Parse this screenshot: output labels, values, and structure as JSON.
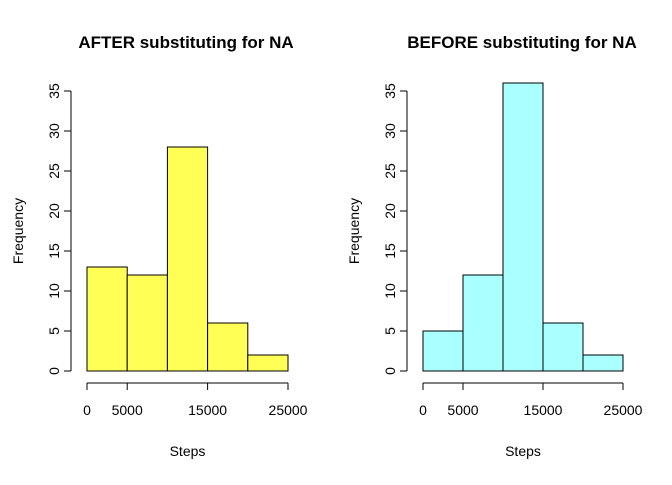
{
  "chart_data": [
    {
      "type": "bar",
      "title": "AFTER substituting for NA",
      "xlabel": "Steps",
      "ylabel": "Frequency",
      "color": "#ffff55",
      "bins": [
        [
          0,
          5000
        ],
        [
          5000,
          10000
        ],
        [
          10000,
          15000
        ],
        [
          15000,
          20000
        ],
        [
          20000,
          25000
        ]
      ],
      "values": [
        13,
        12,
        28,
        6,
        2
      ],
      "xlim": [
        0,
        25000
      ],
      "ylim": [
        0,
        35
      ],
      "x_ticks": [
        0,
        5000,
        15000,
        25000
      ],
      "x_tick_labels": [
        "0",
        "5000",
        "15000",
        "25000"
      ],
      "y_ticks": [
        0,
        5,
        10,
        15,
        20,
        25,
        30,
        35
      ],
      "y_tick_labels": [
        "0",
        "5",
        "10",
        "15",
        "20",
        "25",
        "30",
        "35"
      ],
      "grid": false
    },
    {
      "type": "bar",
      "title": "BEFORE substituting for NA",
      "xlabel": "Steps",
      "ylabel": "Frequency",
      "color": "#aaffff",
      "bins": [
        [
          0,
          5000
        ],
        [
          5000,
          10000
        ],
        [
          10000,
          15000
        ],
        [
          15000,
          20000
        ],
        [
          20000,
          25000
        ]
      ],
      "values": [
        5,
        12,
        36,
        6,
        2
      ],
      "xlim": [
        0,
        25000
      ],
      "ylim": [
        0,
        35
      ],
      "x_ticks": [
        0,
        5000,
        15000,
        25000
      ],
      "x_tick_labels": [
        "0",
        "5000",
        "15000",
        "25000"
      ],
      "y_ticks": [
        0,
        5,
        10,
        15,
        20,
        25,
        30,
        35
      ],
      "y_tick_labels": [
        "0",
        "5",
        "10",
        "15",
        "20",
        "25",
        "30",
        "35"
      ],
      "grid": false
    }
  ]
}
